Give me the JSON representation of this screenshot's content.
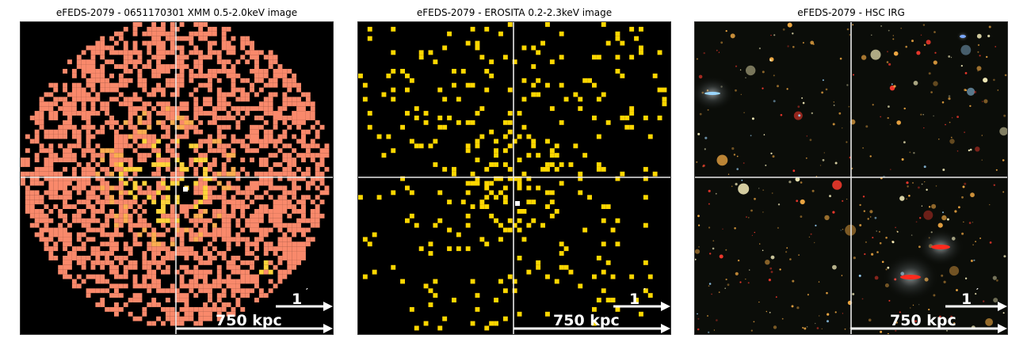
{
  "panels": [
    {
      "title": "eFEDS-2079 - 0651170301 XMM 0.5-2.0keV image",
      "image": "xmm-counts-map",
      "colors": [
        "#f9896b",
        "#fbad4f",
        "#ffd33a",
        "#fff56c",
        "#ffffff"
      ]
    },
    {
      "title": "eFEDS-2079 -  EROSITA 0.2-2.3keV image",
      "image": "erosita-counts-map",
      "colors": [
        "#ffd700",
        "#ffe84a",
        "#ffffff"
      ]
    },
    {
      "title": "eFEDS-2079 - HSC IRG",
      "image": "hsc-irg-color-composite",
      "colors": [
        "#ffb347",
        "#ff3b2f",
        "#fff7c2",
        "#9fd8ff"
      ]
    }
  ],
  "scalebar": {
    "arcmin_label": "1",
    "arcmin_unit": "′",
    "kpc_label": "750 kpc"
  }
}
